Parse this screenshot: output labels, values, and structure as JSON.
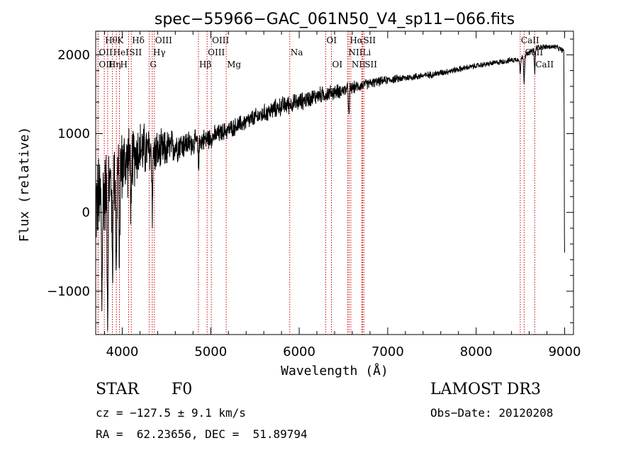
{
  "chart_data": {
    "type": "line",
    "title": "spec−55966−GAC_061N50_V4_sp11−066.fits",
    "xlabel": "Wavelength (Å)",
    "ylabel": "Flux (relative)",
    "xlim": [
      3700,
      9100
    ],
    "ylim": [
      -1550,
      2300
    ],
    "xticks": [
      4000,
      5000,
      6000,
      7000,
      8000,
      9000
    ],
    "yticks": [
      -1000,
      0,
      1000,
      2000
    ],
    "xtick_labels": [
      "4000",
      "5000",
      "6000",
      "7000",
      "8000",
      "9000"
    ],
    "ytick_labels": [
      "−1000",
      "0",
      "1000",
      "2000"
    ],
    "continuum": {
      "x": [
        3700,
        3800,
        3900,
        4000,
        4200,
        4400,
        4600,
        4800,
        5000,
        5200,
        5500,
        5800,
        6000,
        6200,
        6500,
        6800,
        7000,
        7500,
        8000,
        8500,
        8700,
        8900,
        8990,
        9000
      ],
      "y": [
        100,
        250,
        450,
        600,
        800,
        750,
        850,
        880,
        950,
        1050,
        1200,
        1350,
        1400,
        1480,
        1550,
        1640,
        1680,
        1750,
        1860,
        1950,
        2100,
        2100,
        2050,
        0
      ]
    },
    "noise_amplitude": {
      "x": [
        3700,
        3900,
        4100,
        4400,
        4800,
        5200,
        5800,
        6300,
        6700,
        7000,
        8000,
        9000
      ],
      "y": [
        700,
        600,
        500,
        320,
        180,
        130,
        140,
        120,
        80,
        60,
        40,
        40
      ]
    },
    "absorption_features": [
      {
        "x": 3770,
        "depth": 1350
      },
      {
        "x": 3835,
        "depth": 1600
      },
      {
        "x": 3889,
        "depth": 1300
      },
      {
        "x": 3933,
        "depth": 1400
      },
      {
        "x": 3968,
        "depth": 1200
      },
      {
        "x": 4101,
        "depth": 900
      },
      {
        "x": 4340,
        "depth": 700
      },
      {
        "x": 4861,
        "depth": 350
      },
      {
        "x": 6563,
        "depth": 400
      },
      {
        "x": 8498,
        "depth": 200
      },
      {
        "x": 8542,
        "depth": 350
      },
      {
        "x": 8662,
        "depth": 320
      }
    ],
    "line_markers": [
      {
        "x": 3797,
        "label": "Hθ",
        "row": 0
      },
      {
        "x": 3934,
        "label": "K",
        "row": 0
      },
      {
        "x": 4102,
        "label": "Hδ",
        "row": 0
      },
      {
        "x": 4363,
        "label": "OIII",
        "row": 0
      },
      {
        "x": 5007,
        "label": "OIII",
        "row": 0
      },
      {
        "x": 6300,
        "label": "OI",
        "row": 0
      },
      {
        "x": 6563,
        "label": "Hα",
        "row": 0
      },
      {
        "x": 6716,
        "label": "SII",
        "row": 0
      },
      {
        "x": 8498,
        "label": "CaII",
        "row": 0
      },
      {
        "x": 3727,
        "label": "OII",
        "row": 1
      },
      {
        "x": 3889,
        "label": "HeI",
        "row": 1
      },
      {
        "x": 4072,
        "label": "SII",
        "row": 1
      },
      {
        "x": 4340,
        "label": "Hγ",
        "row": 1
      },
      {
        "x": 4959,
        "label": "OIII",
        "row": 1
      },
      {
        "x": 5893,
        "label": "Na",
        "row": 1
      },
      {
        "x": 6548,
        "label": "NII",
        "row": 1
      },
      {
        "x": 6708,
        "label": "Li",
        "row": 1
      },
      {
        "x": 8542,
        "label": "CaII",
        "row": 1
      },
      {
        "x": 3727,
        "label": "OII",
        "row": 2
      },
      {
        "x": 3835,
        "label": "Hη",
        "row": 2
      },
      {
        "x": 3968,
        "label": "H",
        "row": 2
      },
      {
        "x": 4304,
        "label": "G",
        "row": 2
      },
      {
        "x": 4861,
        "label": "Hβ",
        "row": 2
      },
      {
        "x": 5175,
        "label": "Mg",
        "row": 2
      },
      {
        "x": 6364,
        "label": "OI",
        "row": 2
      },
      {
        "x": 6583,
        "label": "NII",
        "row": 2
      },
      {
        "x": 6731,
        "label": "SII",
        "row": 2
      },
      {
        "x": 8662,
        "label": "CaII",
        "row": 2
      }
    ]
  },
  "info": {
    "class_label": "STAR",
    "subclass": "F0",
    "survey": "LAMOST DR3",
    "cz_line": "cz = −127.5 ± 9.1 km/s",
    "obs_date": "Obs−Date: 20120208",
    "radec": "RA =  62.23656, DEC =  51.89794"
  }
}
